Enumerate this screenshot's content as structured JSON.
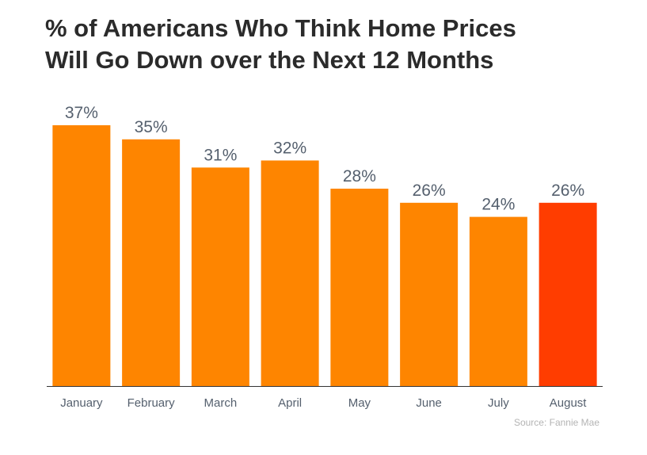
{
  "chart_data": {
    "type": "bar",
    "title_lines": [
      "% of Americans Who Think Home Prices",
      "Will Go Down over the Next 12 Months"
    ],
    "categories": [
      "January",
      "February",
      "March",
      "April",
      "May",
      "June",
      "July",
      "August"
    ],
    "values": [
      37,
      35,
      31,
      32,
      28,
      26,
      24,
      26
    ],
    "value_labels": [
      "37%",
      "35%",
      "31%",
      "32%",
      "28%",
      "26%",
      "24%",
      "26%"
    ],
    "ylim": [
      0,
      37
    ],
    "grid": false,
    "colors": {
      "default": "#fe8500",
      "highlight": "#ff3d00",
      "axis": "#333333"
    },
    "highlight_index": 7,
    "source": "Source: Fannie Mae"
  }
}
